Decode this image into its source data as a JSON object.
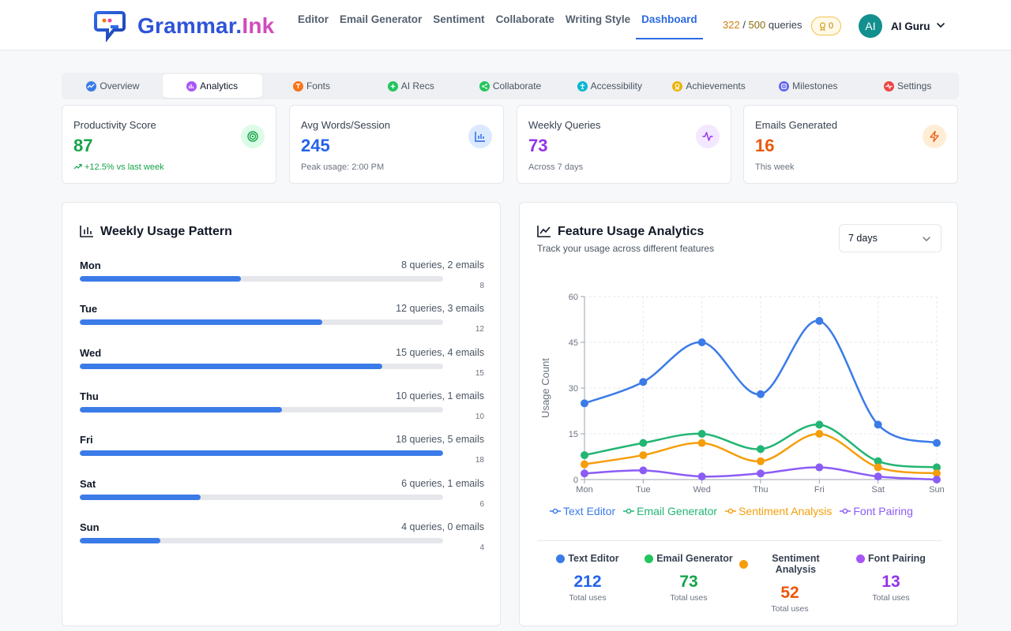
{
  "brand": {
    "name_part1": "Grammar.",
    "name_part2": "Ink"
  },
  "nav": {
    "items": [
      "Editor",
      "Email Generator",
      "Sentiment",
      "Collaborate",
      "Writing Style",
      "Dashboard"
    ],
    "active": "Dashboard"
  },
  "usage": {
    "used": "322",
    "separator": " / ",
    "limit": "500",
    "suffix": " queries"
  },
  "badge": {
    "count": "0"
  },
  "user": {
    "initials": "AI",
    "name": "AI Guru"
  },
  "tabs": [
    {
      "label": "Overview",
      "icon": "trend-icon",
      "color": "#3b7be8"
    },
    {
      "label": "Analytics",
      "icon": "bar-chart-icon",
      "color": "#a855f7"
    },
    {
      "label": "Fonts",
      "icon": "type-icon",
      "color": "#f97316"
    },
    {
      "label": "AI Recs",
      "icon": "sparkle-icon",
      "color": "#22c55e"
    },
    {
      "label": "Collaborate",
      "icon": "share-icon",
      "color": "#22c55e"
    },
    {
      "label": "Accessibility",
      "icon": "accessibility-icon",
      "color": "#06b6d4"
    },
    {
      "label": "Achievements",
      "icon": "award-icon",
      "color": "#eab308"
    },
    {
      "label": "Milestones",
      "icon": "target-icon",
      "color": "#6366f1"
    },
    {
      "label": "Settings",
      "icon": "activity-icon",
      "color": "#ef4444"
    }
  ],
  "active_tab": "Analytics",
  "stats": [
    {
      "label": "Productivity Score",
      "value": "87",
      "sub": "+12.5% vs last week",
      "value_color": "#16a34a",
      "sub_color": "#16a34a",
      "icon": "target-icon",
      "icon_bg": "#dcfce7",
      "icon_color": "#16a34a"
    },
    {
      "label": "Avg Words/Session",
      "value": "245",
      "sub": "Peak usage: 2:00 PM",
      "value_color": "#2563eb",
      "sub_color": "#6b7280",
      "icon": "bar-chart-icon",
      "icon_bg": "#dbeafe",
      "icon_color": "#2563eb"
    },
    {
      "label": "Weekly Queries",
      "value": "73",
      "sub": "Across 7 days",
      "value_color": "#9333ea",
      "sub_color": "#6b7280",
      "icon": "activity-icon",
      "icon_bg": "#f3e8ff",
      "icon_color": "#9333ea"
    },
    {
      "label": "Emails Generated",
      "value": "16",
      "sub": "This week",
      "value_color": "#ea580c",
      "sub_color": "#6b7280",
      "icon": "zap-icon",
      "icon_bg": "#ffedd5",
      "icon_color": "#ea580c"
    }
  ],
  "weekly": {
    "title": "Weekly Usage Pattern",
    "max": 18,
    "days": [
      {
        "day": "Mon",
        "detail": "8 queries, 2 emails",
        "count": "8",
        "value": 8
      },
      {
        "day": "Tue",
        "detail": "12 queries, 3 emails",
        "count": "12",
        "value": 12
      },
      {
        "day": "Wed",
        "detail": "15 queries, 4 emails",
        "count": "15",
        "value": 15
      },
      {
        "day": "Thu",
        "detail": "10 queries, 1 emails",
        "count": "10",
        "value": 10
      },
      {
        "day": "Fri",
        "detail": "18 queries, 5 emails",
        "count": "18",
        "value": 18
      },
      {
        "day": "Sat",
        "detail": "6 queries, 1 emails",
        "count": "6",
        "value": 6
      },
      {
        "day": "Sun",
        "detail": "4 queries, 0 emails",
        "count": "4",
        "value": 4
      }
    ]
  },
  "feature": {
    "title": "Feature Usage Analytics",
    "subtitle": "Track your usage across different features",
    "range": "7 days"
  },
  "chart_data": {
    "type": "line",
    "title": "Feature Usage Analytics",
    "ylabel": "Usage Count",
    "xlabel": "",
    "x": [
      "Mon",
      "Tue",
      "Wed",
      "Thu",
      "Fri",
      "Sat",
      "Sun"
    ],
    "ylim": [
      0,
      60
    ],
    "yticks": [
      0,
      15,
      30,
      45,
      60
    ],
    "grid": true,
    "legend": "bottom",
    "series": [
      {
        "name": "Text Editor",
        "color": "#3b7be8",
        "values": [
          25,
          32,
          45,
          28,
          52,
          18,
          12
        ]
      },
      {
        "name": "Email Generator",
        "color": "#22b573",
        "values": [
          8,
          12,
          15,
          10,
          18,
          6,
          4
        ]
      },
      {
        "name": "Sentiment Analysis",
        "color": "#f59e0b",
        "values": [
          5,
          8,
          12,
          6,
          15,
          4,
          2
        ]
      },
      {
        "name": "Font Pairing",
        "color": "#8b5cf6",
        "values": [
          2,
          3,
          1,
          2,
          4,
          1,
          0
        ]
      }
    ]
  },
  "totals": [
    {
      "name": "Text Editor",
      "value": "212",
      "label": "Total uses",
      "color": "#3b7be8",
      "value_color": "#2563eb"
    },
    {
      "name": "Email Generator",
      "value": "73",
      "label": "Total uses",
      "color": "#22c55e",
      "value_color": "#16a34a"
    },
    {
      "name": "Sentiment Analysis",
      "value": "52",
      "label": "Total uses",
      "color": "#f59e0b",
      "value_color": "#ea580c"
    },
    {
      "name": "Font Pairing",
      "value": "13",
      "label": "Total uses",
      "color": "#a855f7",
      "value_color": "#9333ea"
    }
  ]
}
